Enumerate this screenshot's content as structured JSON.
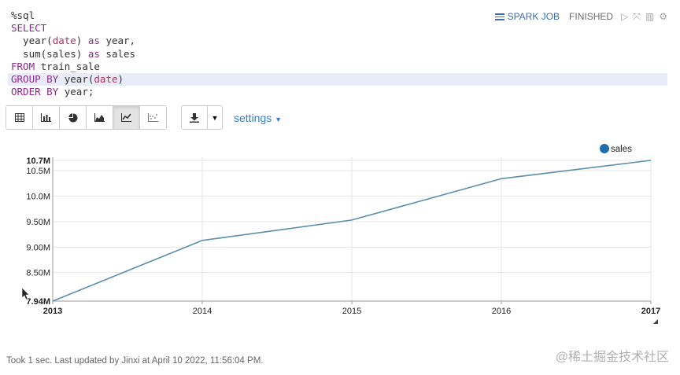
{
  "code": {
    "lines": [
      [
        {
          "t": "%sql",
          "c": "plain"
        }
      ],
      [
        {
          "t": "SELECT",
          "c": "kw"
        }
      ],
      [
        {
          "t": "  year(",
          "c": "plain"
        },
        {
          "t": "date",
          "c": "arg"
        },
        {
          "t": ") ",
          "c": "plain"
        },
        {
          "t": "as",
          "c": "kw"
        },
        {
          "t": " year,",
          "c": "plain"
        }
      ],
      [
        {
          "t": "  sum(sales) ",
          "c": "plain"
        },
        {
          "t": "as",
          "c": "kw"
        },
        {
          "t": " sales",
          "c": "plain"
        }
      ],
      [
        {
          "t": "FROM",
          "c": "kw"
        },
        {
          "t": " train_sale",
          "c": "plain"
        }
      ],
      [
        {
          "t": "GROUP BY",
          "c": "kw"
        },
        {
          "t": " year(",
          "c": "plain"
        },
        {
          "t": "date",
          "c": "arg"
        },
        {
          "t": ")",
          "c": "plain"
        }
      ],
      [
        {
          "t": "ORDER BY",
          "c": "kw"
        },
        {
          "t": " year;",
          "c": "plain"
        }
      ]
    ],
    "highlight_line": 5
  },
  "status": {
    "job_label": "SPARK JOB",
    "state": "FINISHED"
  },
  "toolbar": {
    "views": [
      "table",
      "bar",
      "pie",
      "area",
      "line",
      "scatter"
    ],
    "active_view": "line",
    "settings_label": "settings"
  },
  "chart_data": {
    "type": "line",
    "x": [
      "2013",
      "2014",
      "2015",
      "2016",
      "2017"
    ],
    "series": [
      {
        "name": "sales",
        "values": [
          7.94,
          9.13,
          9.53,
          10.34,
          10.7
        ],
        "color": "#5a8fb0"
      }
    ],
    "unit": "M",
    "ylim": [
      7.94,
      10.7
    ],
    "yticks": [
      {
        "v": 7.94,
        "label": "7.94M"
      },
      {
        "v": 8.5,
        "label": "8.50M"
      },
      {
        "v": 9.0,
        "label": "9.00M"
      },
      {
        "v": 9.5,
        "label": "9.50M"
      },
      {
        "v": 10.0,
        "label": "10.0M"
      },
      {
        "v": 10.5,
        "label": "10.5M"
      },
      {
        "v": 10.7,
        "label": "10.7M"
      }
    ],
    "bold_x_labels": [
      "2013",
      "2017"
    ],
    "bold_y_labels": [
      "7.94M",
      "10.7M"
    ],
    "grid": true,
    "legend_position": "top-right",
    "legend_color": "#1f6fae"
  },
  "footer": {
    "text": "Took 1 sec. Last updated by Jinxi at April 10 2022, 11:56:04 PM."
  },
  "watermark": "@稀土掘金技术社区"
}
